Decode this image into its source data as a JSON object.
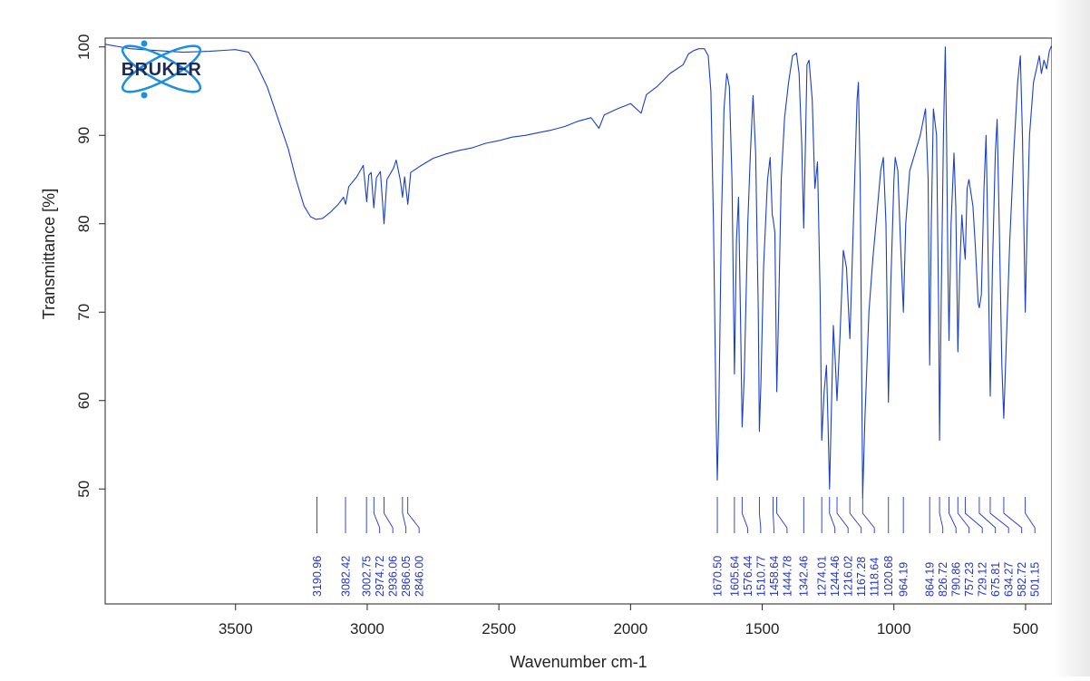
{
  "logo": {
    "text": "BRUKER",
    "color": "#1a8fe3"
  },
  "colors": {
    "spectrum": "#1a3fc8",
    "peak_labels": "#2233cc",
    "axes": "#222222"
  },
  "chart_data": {
    "type": "line",
    "xlabel": "Wavenumber cm-1",
    "ylabel": "Transmittance [%]",
    "xlim": [
      3995,
      400
    ],
    "ylim": [
      37,
      101
    ],
    "x_ticks": [
      3500,
      3000,
      2500,
      2000,
      1500,
      1000,
      500
    ],
    "y_ticks": [
      50,
      60,
      70,
      80,
      90,
      100
    ],
    "grid": false,
    "series": [
      {
        "points": [
          [
            3995,
            100.3
          ],
          [
            3900,
            99.8
          ],
          [
            3800,
            99.6
          ],
          [
            3700,
            99.4
          ],
          [
            3600,
            99.5
          ],
          [
            3500,
            99.7
          ],
          [
            3450,
            99.4
          ],
          [
            3420,
            98.0
          ],
          [
            3380,
            95.5
          ],
          [
            3340,
            92.0
          ],
          [
            3300,
            88.5
          ],
          [
            3270,
            85.0
          ],
          [
            3240,
            82.0
          ],
          [
            3215,
            80.8
          ],
          [
            3195,
            80.5
          ],
          [
            3170,
            80.6
          ],
          [
            3140,
            81.3
          ],
          [
            3110,
            82.2
          ],
          [
            3090,
            83.0
          ],
          [
            3082,
            82.2
          ],
          [
            3070,
            84.2
          ],
          [
            3040,
            85.3
          ],
          [
            3015,
            86.6
          ],
          [
            3002,
            82.5
          ],
          [
            2994,
            85.5
          ],
          [
            2985,
            85.8
          ],
          [
            2975,
            81.8
          ],
          [
            2965,
            85.2
          ],
          [
            2950,
            85.9
          ],
          [
            2936,
            80.0
          ],
          [
            2925,
            85.0
          ],
          [
            2900,
            86.3
          ],
          [
            2890,
            87.2
          ],
          [
            2875,
            85.0
          ],
          [
            2866,
            83.0
          ],
          [
            2858,
            85.3
          ],
          [
            2846,
            82.2
          ],
          [
            2835,
            85.8
          ],
          [
            2800,
            86.5
          ],
          [
            2750,
            87.4
          ],
          [
            2700,
            87.9
          ],
          [
            2650,
            88.3
          ],
          [
            2600,
            88.6
          ],
          [
            2550,
            89.1
          ],
          [
            2500,
            89.4
          ],
          [
            2450,
            89.8
          ],
          [
            2400,
            90.0
          ],
          [
            2350,
            90.3
          ],
          [
            2300,
            90.6
          ],
          [
            2250,
            91.0
          ],
          [
            2200,
            91.6
          ],
          [
            2150,
            92.0
          ],
          [
            2120,
            90.8
          ],
          [
            2100,
            92.3
          ],
          [
            2050,
            93.0
          ],
          [
            2000,
            93.6
          ],
          [
            1960,
            92.5
          ],
          [
            1940,
            94.6
          ],
          [
            1900,
            95.5
          ],
          [
            1850,
            97.0
          ],
          [
            1800,
            98.0
          ],
          [
            1780,
            99.2
          ],
          [
            1760,
            99.6
          ],
          [
            1740,
            99.8
          ],
          [
            1720,
            99.8
          ],
          [
            1705,
            99.0
          ],
          [
            1695,
            95.0
          ],
          [
            1685,
            80.0
          ],
          [
            1675,
            58.0
          ],
          [
            1670.5,
            51.0
          ],
          [
            1665,
            58.0
          ],
          [
            1655,
            80.0
          ],
          [
            1645,
            93.0
          ],
          [
            1635,
            97.0
          ],
          [
            1625,
            95.5
          ],
          [
            1615,
            85.0
          ],
          [
            1605.6,
            63.0
          ],
          [
            1598,
            78.0
          ],
          [
            1590,
            83.0
          ],
          [
            1583,
            70.0
          ],
          [
            1576.4,
            57.0
          ],
          [
            1568,
            63.0
          ],
          [
            1555,
            80.0
          ],
          [
            1545,
            88.0
          ],
          [
            1535,
            94.5
          ],
          [
            1525,
            88.0
          ],
          [
            1515,
            70.0
          ],
          [
            1510.8,
            56.5
          ],
          [
            1505,
            62.0
          ],
          [
            1495,
            75.0
          ],
          [
            1480,
            85.0
          ],
          [
            1470,
            87.5
          ],
          [
            1462,
            81.0
          ],
          [
            1458.6,
            80.5
          ],
          [
            1452,
            79.0
          ],
          [
            1444.8,
            61.0
          ],
          [
            1438,
            70.0
          ],
          [
            1428,
            85.0
          ],
          [
            1415,
            92.0
          ],
          [
            1400,
            96.0
          ],
          [
            1385,
            99.0
          ],
          [
            1370,
            99.3
          ],
          [
            1360,
            97.0
          ],
          [
            1350,
            89.0
          ],
          [
            1342.5,
            79.5
          ],
          [
            1336,
            89.0
          ],
          [
            1330,
            98.0
          ],
          [
            1322,
            98.5
          ],
          [
            1310,
            94.0
          ],
          [
            1300,
            84.0
          ],
          [
            1290,
            87.0
          ],
          [
            1280,
            72.0
          ],
          [
            1274,
            55.5
          ],
          [
            1265,
            61.0
          ],
          [
            1256,
            64.0
          ],
          [
            1250,
            57.0
          ],
          [
            1244.5,
            50.0
          ],
          [
            1238,
            58.0
          ],
          [
            1230,
            68.5
          ],
          [
            1222,
            64.0
          ],
          [
            1216,
            60.0
          ],
          [
            1205,
            67.0
          ],
          [
            1192,
            77.0
          ],
          [
            1180,
            75.0
          ],
          [
            1172,
            70.0
          ],
          [
            1167.3,
            67.0
          ],
          [
            1160,
            74.0
          ],
          [
            1150,
            84.0
          ],
          [
            1140,
            94.0
          ],
          [
            1135,
            96.0
          ],
          [
            1128,
            85.0
          ],
          [
            1118.6,
            49.0
          ],
          [
            1110,
            58.0
          ],
          [
            1095,
            70.0
          ],
          [
            1080,
            76.0
          ],
          [
            1065,
            81.0
          ],
          [
            1050,
            86.0
          ],
          [
            1040,
            87.5
          ],
          [
            1030,
            80.0
          ],
          [
            1020.7,
            59.8
          ],
          [
            1012,
            73.0
          ],
          [
            1000,
            85.0
          ],
          [
            995,
            87.5
          ],
          [
            985,
            86.0
          ],
          [
            975,
            78.0
          ],
          [
            964.2,
            70.0
          ],
          [
            955,
            80.0
          ],
          [
            940,
            86.0
          ],
          [
            920,
            88.0
          ],
          [
            900,
            90.0
          ],
          [
            880,
            93.0
          ],
          [
            870,
            85.0
          ],
          [
            864.2,
            64.0
          ],
          [
            858,
            80.0
          ],
          [
            850,
            93.0
          ],
          [
            838,
            90.0
          ],
          [
            830,
            70.0
          ],
          [
            826.7,
            55.5
          ],
          [
            820,
            72.0
          ],
          [
            812,
            90.0
          ],
          [
            805,
            100.0
          ],
          [
            800,
            90.0
          ],
          [
            795,
            75.0
          ],
          [
            790.9,
            66.8
          ],
          [
            783,
            80.0
          ],
          [
            772,
            88.0
          ],
          [
            765,
            82.0
          ],
          [
            757.2,
            65.5
          ],
          [
            750,
            75.0
          ],
          [
            742,
            81.0
          ],
          [
            735,
            78.0
          ],
          [
            729.1,
            76.0
          ],
          [
            722,
            84.0
          ],
          [
            715,
            85.0
          ],
          [
            700,
            82.0
          ],
          [
            690,
            77.0
          ],
          [
            680,
            71.0
          ],
          [
            675.8,
            70.5
          ],
          [
            668,
            72.0
          ],
          [
            658,
            84.0
          ],
          [
            650,
            90.0
          ],
          [
            644,
            80.0
          ],
          [
            634.3,
            60.5
          ],
          [
            626,
            75.0
          ],
          [
            615,
            88.0
          ],
          [
            608,
            91.8
          ],
          [
            600,
            80.0
          ],
          [
            590,
            64.0
          ],
          [
            582.7,
            58.0
          ],
          [
            575,
            65.0
          ],
          [
            560,
            78.0
          ],
          [
            545,
            88.0
          ],
          [
            530,
            96.0
          ],
          [
            520,
            99.0
          ],
          [
            512,
            90.0
          ],
          [
            501.2,
            70.0
          ],
          [
            494,
            80.0
          ],
          [
            485,
            90.0
          ],
          [
            470,
            96.0
          ],
          [
            455,
            98.0
          ],
          [
            448,
            99.0
          ],
          [
            440,
            97.0
          ],
          [
            430,
            98.5
          ],
          [
            420,
            97.5
          ],
          [
            410,
            99.5
          ],
          [
            402,
            100.1
          ]
        ]
      }
    ],
    "peaks": [
      {
        "x": 3190.96,
        "label": "3190.96"
      },
      {
        "x": 3082.42,
        "label": "3082.42"
      },
      {
        "x": 3002.75,
        "label": "3002.75"
      },
      {
        "x": 2974.72,
        "label": "2974.72"
      },
      {
        "x": 2936.06,
        "label": "2936.06"
      },
      {
        "x": 2866.05,
        "label": "2866.05"
      },
      {
        "x": 2846.0,
        "label": "2846.00"
      },
      {
        "x": 1670.5,
        "label": "1670.50"
      },
      {
        "x": 1605.64,
        "label": "1605.64"
      },
      {
        "x": 1576.44,
        "label": "1576.44"
      },
      {
        "x": 1510.77,
        "label": "1510.77"
      },
      {
        "x": 1458.64,
        "label": "1458.64"
      },
      {
        "x": 1444.78,
        "label": "1444.78"
      },
      {
        "x": 1342.46,
        "label": "1342.46"
      },
      {
        "x": 1274.01,
        "label": "1274.01"
      },
      {
        "x": 1244.46,
        "label": "1244.46"
      },
      {
        "x": 1216.02,
        "label": "1216.02"
      },
      {
        "x": 1167.28,
        "label": "1167.28"
      },
      {
        "x": 1118.64,
        "label": "1118.64"
      },
      {
        "x": 1020.68,
        "label": "1020.68"
      },
      {
        "x": 964.19,
        "label": "964.19"
      },
      {
        "x": 864.19,
        "label": "864.19"
      },
      {
        "x": 826.72,
        "label": "826.72"
      },
      {
        "x": 790.86,
        "label": "790.86"
      },
      {
        "x": 757.23,
        "label": "757.23"
      },
      {
        "x": 729.12,
        "label": "729.12"
      },
      {
        "x": 675.81,
        "label": "675.81"
      },
      {
        "x": 634.27,
        "label": "634.27"
      },
      {
        "x": 582.72,
        "label": "582.72"
      },
      {
        "x": 501.15,
        "label": "501.15"
      }
    ]
  }
}
